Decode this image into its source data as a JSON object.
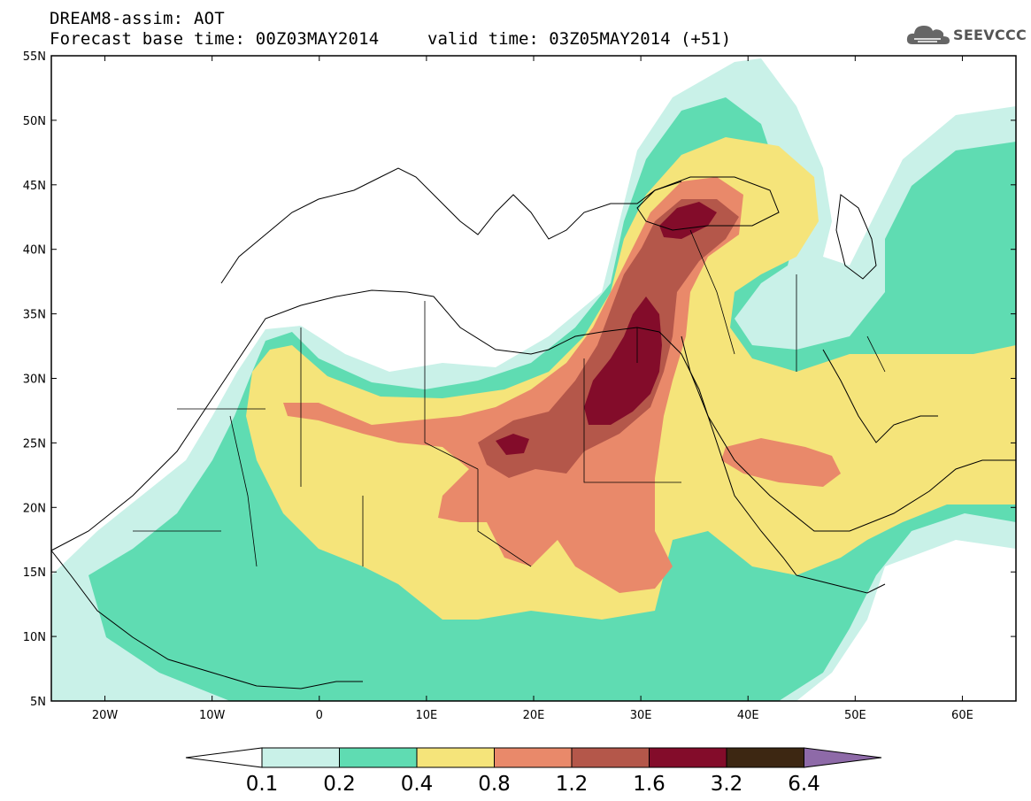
{
  "header": {
    "title_line1": "DREAM8-assim: AOT",
    "title_line2": "Forecast base time: 00Z03MAY2014",
    "valid_time": "valid time: 03Z05MAY2014 (+51)",
    "logo_text": "SEEVCCC",
    "logo_icon": "cloud-icon"
  },
  "axes": {
    "lat_labels": [
      "55N",
      "50N",
      "45N",
      "40N",
      "35N",
      "30N",
      "25N",
      "20N",
      "15N",
      "10N",
      "5N"
    ],
    "lon_labels": [
      "20W",
      "10W",
      "0",
      "10E",
      "20E",
      "30E",
      "40E",
      "50E",
      "60E"
    ],
    "lat_range": [
      5,
      55
    ],
    "lon_range": [
      -25,
      65
    ]
  },
  "colorbar": {
    "labels": [
      "0.1",
      "0.2",
      "0.4",
      "0.8",
      "1.2",
      "1.6",
      "3.2",
      "6.4"
    ],
    "colors": [
      "#ffffff",
      "#c9f1e8",
      "#5fdcb2",
      "#f5e47a",
      "#e9896a",
      "#b4574a",
      "#830c2a",
      "#3d2712",
      "#8e6aa8"
    ]
  },
  "levels_colors": {
    "0.1": "#c9f1e8",
    "0.2": "#5fdcb2",
    "0.4": "#f5e47a",
    "0.8": "#e9896a",
    "1.2": "#b4574a",
    "1.6": "#830c2a",
    "3.2": "#3d2712"
  }
}
